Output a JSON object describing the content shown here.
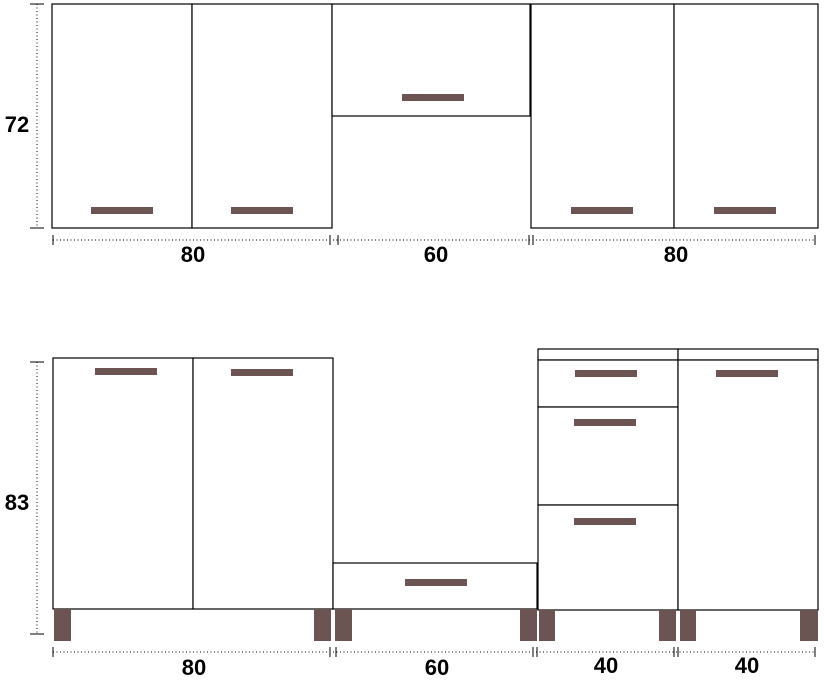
{
  "colors": {
    "handle": "#6b5452",
    "leg": "#6b5452",
    "outline": "#000000",
    "background": "#ffffff"
  },
  "upper": {
    "height_label": "72",
    "widths": [
      "80",
      "60",
      "80"
    ]
  },
  "lower": {
    "height_label": "83",
    "widths": [
      "80",
      "60",
      "40",
      "40"
    ]
  }
}
